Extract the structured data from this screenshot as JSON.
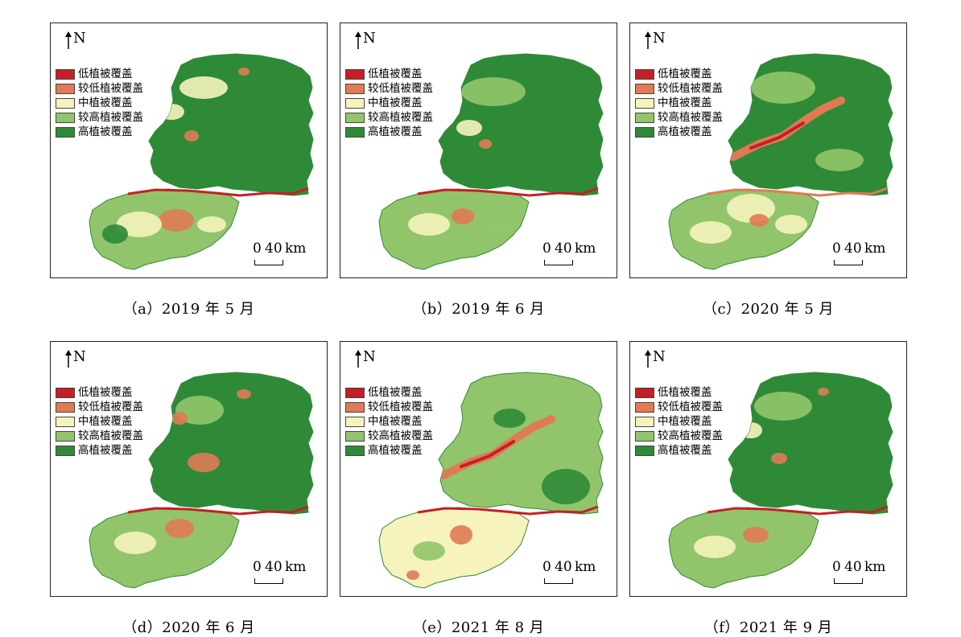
{
  "legend": [
    {
      "label": "低植被覆盖",
      "color": "#c41f26"
    },
    {
      "label": "较低植被覆盖",
      "color": "#e07a55"
    },
    {
      "label": "中植被覆盖",
      "color": "#f6f3bd"
    },
    {
      "label": "较高植被覆盖",
      "color": "#92c56b"
    },
    {
      "label": "高植被覆盖",
      "color": "#2f8a38"
    }
  ],
  "north_label": "N",
  "scale": {
    "zero": "0",
    "value": "40",
    "unit": "km"
  },
  "panels": [
    {
      "caption": "（a）2019 年 5 月"
    },
    {
      "caption": "（b）2019 年 6 月"
    },
    {
      "caption": "（c）2020 年 5 月"
    },
    {
      "caption": "（d）2020 年 6 月"
    },
    {
      "caption": "（e）2021 年 8 月"
    },
    {
      "caption": "（f）2021 年 9 月"
    }
  ]
}
